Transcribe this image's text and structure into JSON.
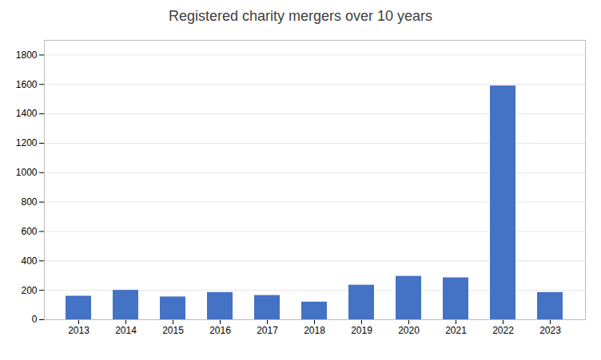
{
  "chart_data": {
    "type": "bar",
    "title": "Registered charity mergers over 10 years",
    "categories": [
      "2013",
      "2014",
      "2015",
      "2016",
      "2017",
      "2018",
      "2019",
      "2020",
      "2021",
      "2022",
      "2023"
    ],
    "values": [
      160,
      200,
      155,
      185,
      165,
      120,
      235,
      295,
      285,
      1590,
      185
    ],
    "color": "#4472C4",
    "ylim": [
      0,
      1900
    ],
    "yticks": [
      0,
      200,
      400,
      600,
      800,
      1000,
      1200,
      1400,
      1600,
      1800
    ],
    "grid": true
  }
}
